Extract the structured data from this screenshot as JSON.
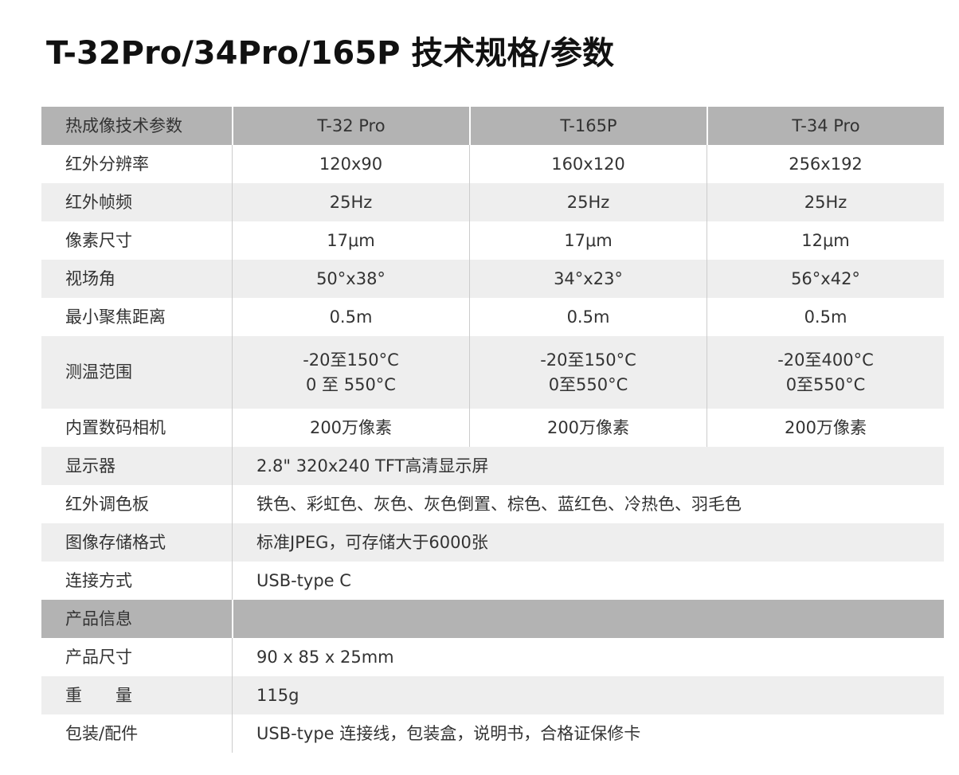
{
  "title": "T-32Pro/34Pro/165P 技术规格/参数",
  "table": {
    "header": [
      "热成像技术参数",
      "T-32 Pro",
      "T-165P",
      "T-34 Pro"
    ],
    "rows": [
      [
        "红外分辨率",
        "120x90",
        "160x120",
        "256x192"
      ],
      [
        "红外帧频",
        "25Hz",
        "25Hz",
        "25Hz"
      ],
      [
        "像素尺寸",
        "17μm",
        "17μm",
        "12μm"
      ],
      [
        "视场角",
        "50°x38°",
        "34°x23°",
        "56°x42°"
      ],
      [
        "最小聚焦距离",
        "0.5m",
        "0.5m",
        "0.5m"
      ],
      [
        "测温范围",
        [
          "-20至150°C",
          "0 至 550°C"
        ],
        [
          "-20至150°C",
          "0至550°C"
        ],
        [
          "-20至400°C",
          "0至550°C"
        ]
      ],
      [
        "内置数码相机",
        "200万像素",
        "200万像素",
        "200万像素"
      ],
      [
        "显示器",
        "2.8\" 320x240 TFT高清显示屏"
      ],
      [
        "红外调色板",
        "铁色、彩虹色、灰色、灰色倒置、棕色、蓝红色、冷热色、羽毛色"
      ],
      [
        "图像存储格式",
        "标准JPEG，可存储大于6000张"
      ],
      [
        "连接方式",
        "USB-type C"
      ],
      [
        "产品信息"
      ],
      [
        "产品尺寸",
        "90 x 85 x 25mm"
      ],
      [
        "重　　量",
        "115g"
      ],
      [
        "包装/配件",
        "USB-type 连接线，包装盒，说明书，合格证保修卡"
      ]
    ]
  }
}
